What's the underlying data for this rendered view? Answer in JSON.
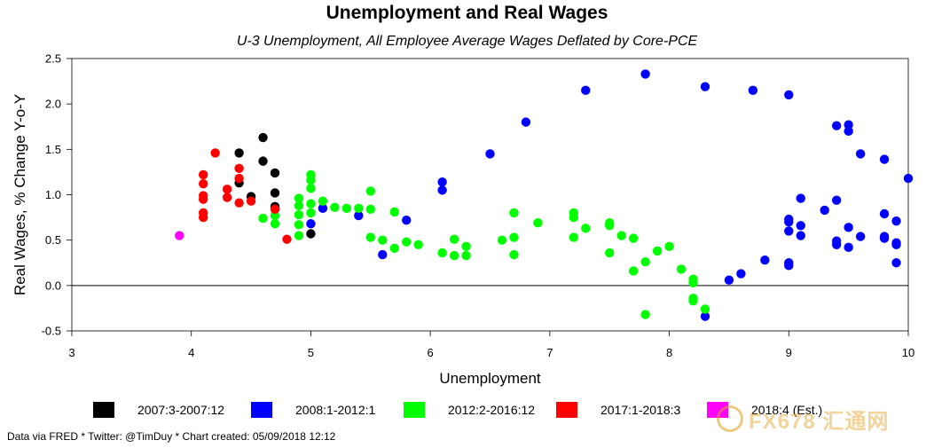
{
  "chart_data": {
    "type": "scatter",
    "title": "Unemployment and Real Wages",
    "subtitle": "U-3 Unemployment, All Employee Average Wages Deflated by Core-PCE",
    "xlabel": "Unemployment",
    "ylabel": "Real Wages, % Change Y-o-Y",
    "xlim": [
      3,
      10
    ],
    "ylim": [
      -0.5,
      2.5
    ],
    "xticks": [
      "3",
      "4",
      "5",
      "6",
      "7",
      "8",
      "9",
      "10"
    ],
    "yticks": [
      "-0.5",
      "0.0",
      "0.5",
      "1.0",
      "1.5",
      "2.0",
      "2.5"
    ],
    "grid": false,
    "zero_line": true,
    "legend_position": "bottom",
    "series": [
      {
        "name": "2007:3-2007:12",
        "color": "#000000",
        "points": [
          [
            4.4,
            1.46
          ],
          [
            4.6,
            1.63
          ],
          [
            4.4,
            1.13
          ],
          [
            4.5,
            0.98
          ],
          [
            4.6,
            1.37
          ],
          [
            4.7,
            1.24
          ],
          [
            4.7,
            1.02
          ],
          [
            4.7,
            0.87
          ],
          [
            4.7,
            0.85
          ],
          [
            5.0,
            0.57
          ]
        ]
      },
      {
        "name": "2008:1-2012:1",
        "color": "#0000ff",
        "points": [
          [
            5.0,
            0.68
          ],
          [
            5.1,
            0.85
          ],
          [
            5.4,
            0.77
          ],
          [
            5.6,
            0.34
          ],
          [
            5.8,
            0.72
          ],
          [
            6.1,
            1.14
          ],
          [
            6.1,
            1.05
          ],
          [
            6.5,
            1.45
          ],
          [
            6.8,
            1.8
          ],
          [
            7.3,
            2.15
          ],
          [
            7.8,
            2.33
          ],
          [
            8.3,
            2.19
          ],
          [
            8.7,
            2.15
          ],
          [
            9.0,
            2.1
          ],
          [
            8.3,
            -0.34
          ],
          [
            8.5,
            0.06
          ],
          [
            8.6,
            0.13
          ],
          [
            8.8,
            0.28
          ],
          [
            9.0,
            0.25
          ],
          [
            9.0,
            0.22
          ],
          [
            9.0,
            0.6
          ],
          [
            9.0,
            0.7
          ],
          [
            9.0,
            0.73
          ],
          [
            9.1,
            0.55
          ],
          [
            9.1,
            0.66
          ],
          [
            9.1,
            0.96
          ],
          [
            9.3,
            0.83
          ],
          [
            9.4,
            0.45
          ],
          [
            9.4,
            0.49
          ],
          [
            9.4,
            0.94
          ],
          [
            9.4,
            1.76
          ],
          [
            9.5,
            1.77
          ],
          [
            9.5,
            1.7
          ],
          [
            9.5,
            0.42
          ],
          [
            9.5,
            0.64
          ],
          [
            9.6,
            0.54
          ],
          [
            9.6,
            1.45
          ],
          [
            9.8,
            1.39
          ],
          [
            9.8,
            0.79
          ],
          [
            9.8,
            0.52
          ],
          [
            9.8,
            0.54
          ],
          [
            9.9,
            0.71
          ],
          [
            9.9,
            0.47
          ],
          [
            9.9,
            0.45
          ],
          [
            9.9,
            0.25
          ],
          [
            10.0,
            1.18
          ]
        ]
      },
      {
        "name": "2012:2-2016:12",
        "color": "#00ff00",
        "points": [
          [
            4.6,
            0.74
          ],
          [
            4.7,
            0.77
          ],
          [
            4.7,
            0.68
          ],
          [
            4.9,
            0.96
          ],
          [
            4.9,
            0.88
          ],
          [
            4.9,
            0.78
          ],
          [
            4.9,
            0.67
          ],
          [
            4.9,
            0.55
          ],
          [
            5.0,
            1.22
          ],
          [
            5.0,
            1.16
          ],
          [
            5.0,
            1.07
          ],
          [
            5.0,
            0.9
          ],
          [
            5.0,
            0.8
          ],
          [
            5.1,
            0.93
          ],
          [
            5.2,
            0.86
          ],
          [
            5.3,
            0.85
          ],
          [
            5.4,
            0.85
          ],
          [
            5.5,
            1.04
          ],
          [
            5.5,
            0.84
          ],
          [
            5.5,
            0.53
          ],
          [
            5.6,
            0.5
          ],
          [
            5.7,
            0.81
          ],
          [
            5.7,
            0.41
          ],
          [
            5.8,
            0.48
          ],
          [
            5.9,
            0.45
          ],
          [
            6.1,
            0.36
          ],
          [
            6.2,
            0.51
          ],
          [
            6.2,
            0.33
          ],
          [
            6.3,
            0.43
          ],
          [
            6.3,
            0.33
          ],
          [
            6.6,
            0.5
          ],
          [
            6.7,
            0.8
          ],
          [
            6.7,
            0.53
          ],
          [
            6.7,
            0.34
          ],
          [
            6.9,
            0.69
          ],
          [
            7.2,
            0.8
          ],
          [
            7.2,
            0.75
          ],
          [
            7.2,
            0.53
          ],
          [
            7.3,
            0.63
          ],
          [
            7.5,
            0.69
          ],
          [
            7.5,
            0.66
          ],
          [
            7.5,
            0.36
          ],
          [
            7.6,
            0.55
          ],
          [
            7.7,
            0.52
          ],
          [
            7.7,
            0.16
          ],
          [
            7.8,
            0.26
          ],
          [
            7.8,
            -0.32
          ],
          [
            7.9,
            0.38
          ],
          [
            8.0,
            0.43
          ],
          [
            8.1,
            0.18
          ],
          [
            8.2,
            0.07
          ],
          [
            8.2,
            0.03
          ],
          [
            8.2,
            -0.14
          ],
          [
            8.2,
            -0.17
          ],
          [
            8.3,
            -0.26
          ]
        ]
      },
      {
        "name": "2017:1-2018:3",
        "color": "#ff0000",
        "points": [
          [
            4.1,
            1.22
          ],
          [
            4.1,
            1.12
          ],
          [
            4.1,
            0.99
          ],
          [
            4.1,
            0.95
          ],
          [
            4.1,
            0.8
          ],
          [
            4.1,
            0.75
          ],
          [
            4.2,
            1.46
          ],
          [
            4.3,
            1.06
          ],
          [
            4.3,
            0.97
          ],
          [
            4.4,
            1.29
          ],
          [
            4.4,
            1.18
          ],
          [
            4.4,
            0.91
          ],
          [
            4.5,
            0.93
          ],
          [
            4.7,
            0.84
          ],
          [
            4.8,
            0.51
          ]
        ]
      },
      {
        "name": "2018:4 (Est.)",
        "color": "#ff00ff",
        "points": [
          [
            3.9,
            0.55
          ]
        ]
      }
    ]
  },
  "footer": {
    "note": "Data via FRED * Twitter: @TimDuy * Chart created: 05/09/2018 12:12"
  },
  "watermark": {
    "text": "FX678 汇通网"
  }
}
